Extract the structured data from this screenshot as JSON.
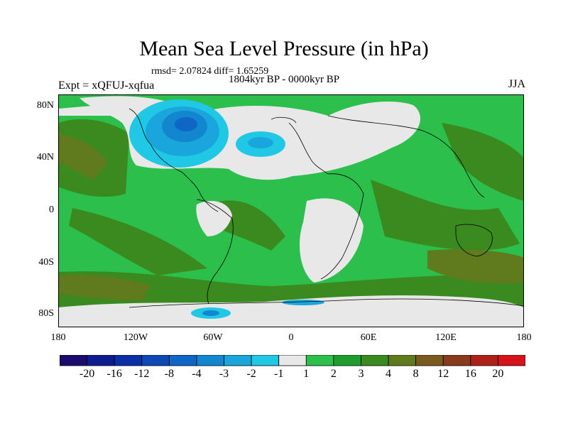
{
  "title": "Mean Sea Level Pressure (in hPa)",
  "stats": "rmsd= 2.07824 diff= 1.65259",
  "period": "1804kyr BP - 0000kyr BP",
  "experiment": "Expt = xQFUJ-xqfua",
  "season": "JJA",
  "lat_labels": [
    "80N",
    "40N",
    "0",
    "40S",
    "80S"
  ],
  "lon_labels": [
    "180",
    "120W",
    "60W",
    "0",
    "60E",
    "120E",
    "180"
  ],
  "colorbar": {
    "labels": [
      "-20",
      "-16",
      "-12",
      "-8",
      "-4",
      "-3",
      "-2",
      "-1",
      "1",
      "2",
      "3",
      "4",
      "8",
      "12",
      "16",
      "20"
    ],
    "colors": [
      "#1a0b6e",
      "#0d1c8f",
      "#0a2fa6",
      "#0e48b5",
      "#0f66c4",
      "#1286cf",
      "#1aa6dc",
      "#21c8e6",
      "#e8e8e8",
      "#2cbf4b",
      "#1f9e2e",
      "#3a8a1f",
      "#607a1e",
      "#7a5a1f",
      "#8a3a1c",
      "#b0201a",
      "#d6131a"
    ]
  },
  "colors": {
    "land_outline": "#000000",
    "neutral": "#e8e8e8",
    "green_light": "#2cbf4b",
    "green_mid": "#1f9e2e",
    "olive": "#3a8a1f",
    "brown": "#607a1e"
  }
}
